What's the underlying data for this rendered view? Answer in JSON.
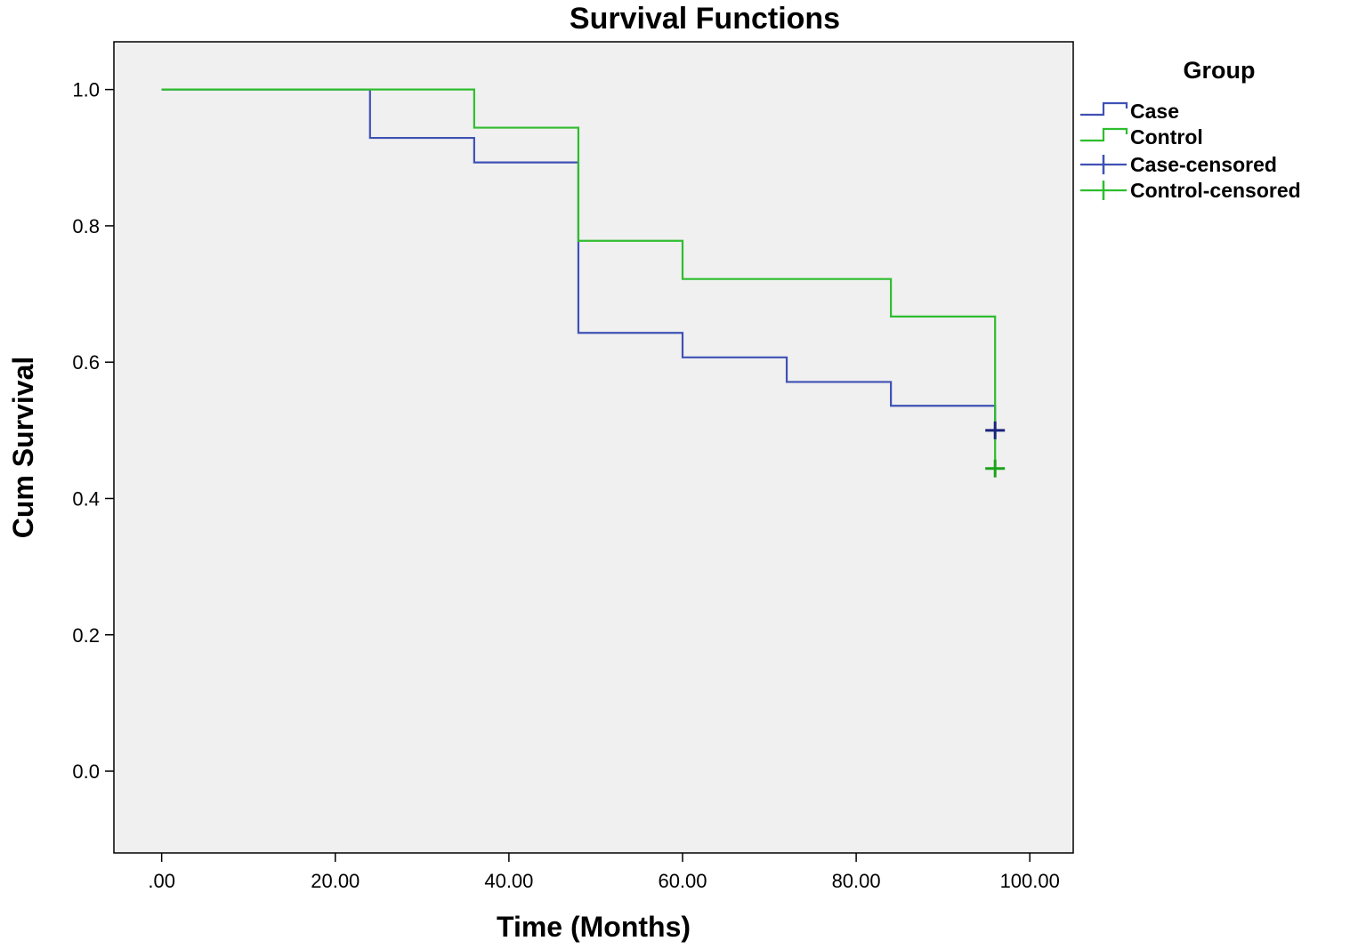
{
  "chart_data": {
    "type": "line",
    "step": true,
    "title": "Survival Functions",
    "xlabel": "Time (Months)",
    "ylabel": "Cum Survival",
    "xlim": [
      -5.5,
      105
    ],
    "ylim": [
      -0.12,
      1.07
    ],
    "xticks": [
      0,
      20,
      40,
      60,
      80,
      100
    ],
    "xtick_labels": [
      ".00",
      "20.00",
      "40.00",
      "60.00",
      "80.00",
      "100.00"
    ],
    "yticks": [
      0,
      0.2,
      0.4,
      0.6,
      0.8,
      1.0
    ],
    "ytick_labels": [
      "0.0",
      "0.2",
      "0.4",
      "0.6",
      "0.8",
      "1.0"
    ],
    "grid": false,
    "plot_background": "#f0f0f0",
    "legend": {
      "title": "Group",
      "placement": "right",
      "entries": [
        {
          "label": "Case",
          "kind": "step",
          "color": "#3f51b5"
        },
        {
          "label": "Control",
          "kind": "step",
          "color": "#2ebd2e"
        },
        {
          "label": "Case-censored",
          "kind": "censor",
          "color": "#3f51b5"
        },
        {
          "label": "Control-censored",
          "kind": "censor",
          "color": "#2ebd2e"
        }
      ]
    },
    "series": [
      {
        "name": "Case",
        "color": "#3f51b5",
        "censor_color": "#1a237e",
        "x": [
          0,
          24,
          36,
          48,
          60,
          72,
          84,
          96,
          96
        ],
        "y": [
          1.0,
          0.929,
          0.893,
          0.643,
          0.607,
          0.571,
          0.536,
          0.5,
          0.5
        ],
        "censored": [
          {
            "x": 96,
            "y": 0.5
          }
        ]
      },
      {
        "name": "Control",
        "color": "#2ebd2e",
        "censor_color": "#1aa31a",
        "x": [
          0,
          36,
          48,
          60,
          84,
          96
        ],
        "y": [
          1.0,
          0.944,
          0.778,
          0.722,
          0.667,
          0.444
        ],
        "censored": [
          {
            "x": 96,
            "y": 0.444
          }
        ]
      }
    ]
  }
}
